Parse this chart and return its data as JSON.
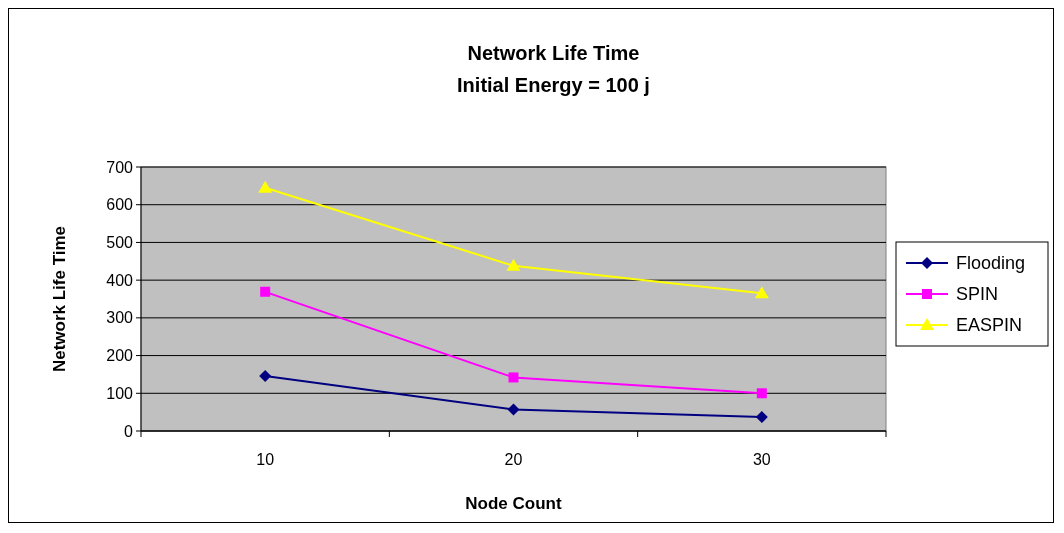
{
  "chart_data": {
    "type": "line",
    "title": "Network Life Time\nInitial Energy = 100 j",
    "xlabel": "Node Count",
    "ylabel": "Network Life Time",
    "categories": [
      "10",
      "20",
      "30"
    ],
    "series": [
      {
        "name": "Flooding",
        "color": "#000080",
        "marker": "diamond",
        "values": [
          146,
          57,
          37
        ]
      },
      {
        "name": "SPIN",
        "color": "#ff00ff",
        "marker": "square",
        "values": [
          369,
          142,
          100
        ]
      },
      {
        "name": "EASPIN",
        "color": "#ffff00",
        "marker": "triangle",
        "values": [
          645,
          438,
          365
        ]
      }
    ],
    "ylim": [
      0,
      700
    ],
    "yticks": [
      0,
      100,
      200,
      300,
      400,
      500,
      600,
      700
    ],
    "grid": "y",
    "legend": "right"
  }
}
